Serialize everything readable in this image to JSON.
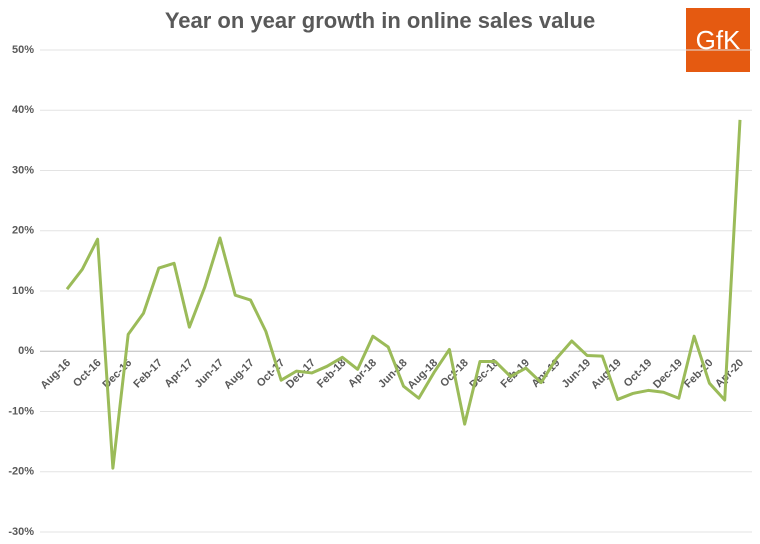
{
  "chart_data": {
    "type": "line",
    "title": "Year on year growth in online sales value",
    "logo": "GfK",
    "categories": [
      "Aug-16",
      null,
      "Oct-16",
      null,
      "Dec-16",
      null,
      "Feb-17",
      null,
      "Apr-17",
      null,
      "Jun-17",
      null,
      "Aug-17",
      null,
      "Oct-17",
      null,
      "Dec-17",
      null,
      "Feb-18",
      null,
      "Apr-18",
      null,
      "Jun-18",
      null,
      "Aug-18",
      null,
      "Oct-18",
      null,
      "Dec-18",
      null,
      "Feb-19",
      null,
      "Apr-19",
      null,
      "Jun-19",
      null,
      "Aug-19",
      null,
      "Oct-19",
      null,
      "Dec-19",
      null,
      "Feb-20",
      null,
      "Apr-20"
    ],
    "series": [
      {
        "color": "#9bbb59",
        "values": [
          10.3,
          13.6,
          18.6,
          -19.4,
          2.8,
          6.3,
          13.8,
          14.6,
          4.0,
          10.6,
          18.8,
          9.3,
          8.5,
          3.3,
          -4.8,
          -3.3,
          -3.6,
          -2.5,
          -1.0,
          -3.0,
          2.5,
          0.7,
          -5.8,
          -7.8,
          -3.5,
          0.3,
          -12.1,
          -1.7,
          -1.7,
          -4.2,
          -2.8,
          -5.2,
          -1.2,
          1.7,
          -0.7,
          -0.8,
          -8.0,
          -7.0,
          -6.5,
          -6.8,
          -7.8,
          2.5,
          -5.3,
          -8.1,
          38.4
        ]
      }
    ],
    "ylim": [
      -30,
      50
    ],
    "yticks": [
      {
        "value": -30,
        "label": "-30%"
      },
      {
        "value": -20,
        "label": "-20%"
      },
      {
        "value": -10,
        "label": "-10%"
      },
      {
        "value": 0,
        "label": "0%"
      },
      {
        "value": 10,
        "label": "10%"
      },
      {
        "value": 20,
        "label": "20%"
      },
      {
        "value": 30,
        "label": "30%"
      },
      {
        "value": 40,
        "label": "40%"
      },
      {
        "value": 50,
        "label": "50%"
      }
    ],
    "grid": true
  }
}
